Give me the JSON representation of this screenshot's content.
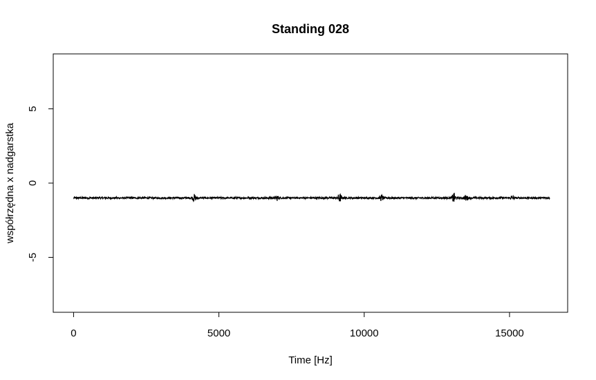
{
  "chart_data": {
    "type": "line",
    "title": "Standing 028",
    "xlabel": "Time [Hz]",
    "ylabel": "współrzędna x nadgarstka",
    "xlim": [
      -700,
      17000
    ],
    "ylim": [
      -8.7,
      8.7
    ],
    "xticks": [
      0,
      5000,
      10000,
      15000
    ],
    "xtick_labels": [
      "0",
      "5000",
      "10000",
      "15000"
    ],
    "yticks": [
      -5,
      0,
      5
    ],
    "ytick_labels": [
      "-5",
      "0",
      "5"
    ],
    "grid": false,
    "series": [
      {
        "color": "#000000",
        "x_start": 0,
        "x_end": 16384,
        "y_mean": -1.0,
        "y_noise_amplitude": 0.06,
        "bursts": [
          {
            "x": 4150,
            "amplitude": 0.22
          },
          {
            "x": 7000,
            "amplitude": 0.15
          },
          {
            "x": 9150,
            "amplitude": 0.28
          },
          {
            "x": 10600,
            "amplitude": 0.18
          },
          {
            "x": 13080,
            "amplitude": 0.32
          },
          {
            "x": 13500,
            "amplitude": 0.18
          },
          {
            "x": 15100,
            "amplitude": 0.12
          }
        ]
      }
    ]
  }
}
